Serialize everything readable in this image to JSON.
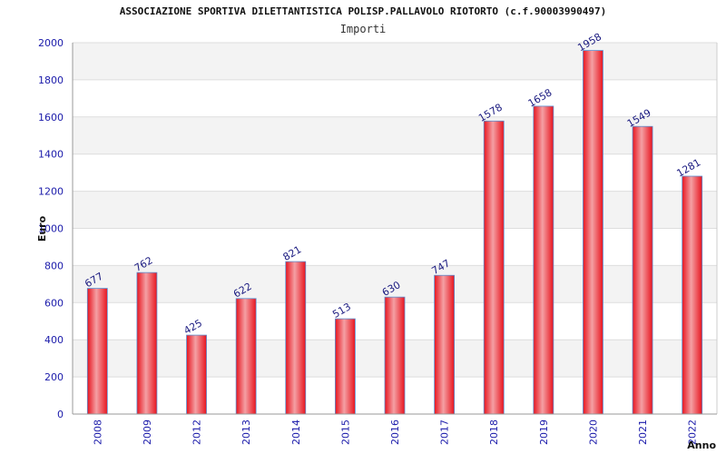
{
  "chart_data": {
    "type": "bar",
    "title": "ASSOCIAZIONE SPORTIVA DILETTANTISTICA POLISP.PALLAVOLO RIOTORTO (c.f.90003990497)",
    "subtitle": "Importi",
    "xlabel": "Anno",
    "ylabel": "Euro",
    "categories": [
      "2008",
      "2009",
      "2012",
      "2013",
      "2014",
      "2015",
      "2016",
      "2017",
      "2018",
      "2019",
      "2020",
      "2021",
      "2022"
    ],
    "values": [
      677,
      762,
      425,
      622,
      821,
      513,
      630,
      747,
      1578,
      1658,
      1958,
      1549,
      1281
    ],
    "ylim": [
      0,
      2000
    ],
    "yticks": [
      "0",
      "200",
      "400",
      "600",
      "800",
      "1000",
      "1200",
      "1400",
      "1600",
      "1800",
      "2000"
    ],
    "grid": true,
    "legend": "none",
    "colors": {
      "bar": "#e8141e",
      "bar_highlight": "#f4a0a4",
      "bar_outline": "#5a8fd0",
      "band": "#f3f3f3",
      "tick_label": "#1a1aaa",
      "data_label": "#1a1a80"
    }
  }
}
